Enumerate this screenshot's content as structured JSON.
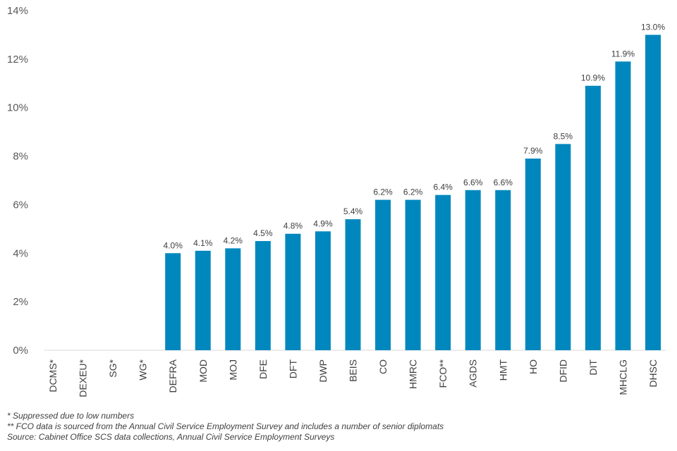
{
  "chart_data": {
    "type": "bar",
    "categories": [
      "DCMS*",
      "DEXEU*",
      "SG*",
      "WG*",
      "DEFRA",
      "MOD",
      "MOJ",
      "DFE",
      "DFT",
      "DWP",
      "BEIS",
      "CO",
      "HMRC",
      "FCO**",
      "AGDS",
      "HMT",
      "HO",
      "DFID",
      "DIT",
      "MHCLG",
      "DHSC"
    ],
    "values": [
      null,
      null,
      null,
      null,
      4.0,
      4.1,
      4.2,
      4.5,
      4.8,
      4.9,
      5.4,
      6.2,
      6.2,
      6.4,
      6.6,
      6.6,
      7.9,
      8.5,
      10.9,
      11.9,
      13.0
    ],
    "value_labels": [
      "",
      "",
      "",
      "",
      "4.0%",
      "4.1%",
      "4.2%",
      "4.5%",
      "4.8%",
      "4.9%",
      "5.4%",
      "6.2%",
      "6.2%",
      "6.4%",
      "6.6%",
      "6.6%",
      "7.9%",
      "8.5%",
      "10.9%",
      "11.9%",
      "13.0%"
    ],
    "ylim": [
      0,
      14
    ],
    "yticks": [
      0,
      2,
      4,
      6,
      8,
      10,
      12,
      14
    ],
    "ytick_labels": [
      "0%",
      "2%",
      "4%",
      "6%",
      "8%",
      "10%",
      "12%",
      "14%"
    ],
    "title": "",
    "xlabel": "",
    "ylabel": "",
    "grid": false,
    "bar_color": "#0088BE"
  },
  "footnotes": {
    "suppressed": "* Suppressed due to low numbers",
    "fco": "** FCO data is sourced from the Annual Civil Service Employment Survey and includes a number of senior diplomats",
    "source": "Source: Cabinet Office SCS data collections, Annual Civil Service Employment Surveys"
  }
}
